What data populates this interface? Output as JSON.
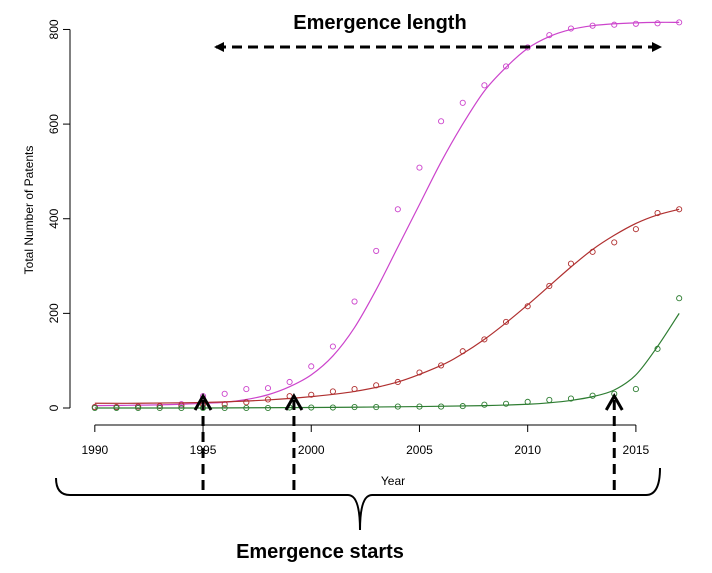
{
  "chart_data": {
    "type": "scatter",
    "title": "",
    "xlabel": "Year",
    "ylabel": "Total Number of Patents",
    "xlim": [
      1989.5,
      2017.5
    ],
    "ylim": [
      0,
      820
    ],
    "x_ticks": [
      1990,
      1995,
      2000,
      2005,
      2010,
      2015
    ],
    "y_ticks": [
      0,
      200,
      400,
      600,
      800
    ],
    "grid": false,
    "legend": "none",
    "series": [
      {
        "color": "#cc44cc",
        "points_x": [
          1990,
          1991,
          1992,
          1993,
          1994,
          1995,
          1996,
          1997,
          1998,
          1999,
          2000,
          2001,
          2002,
          2003,
          2004,
          2005,
          2006,
          2007,
          2008,
          2009,
          2010,
          2011,
          2012,
          2013,
          2014,
          2015,
          2016,
          2017
        ],
        "points_y": [
          2,
          2,
          3,
          4,
          8,
          25,
          30,
          40,
          42,
          55,
          88,
          130,
          225,
          332,
          420,
          508,
          606,
          645,
          682,
          722,
          762,
          788,
          802,
          808,
          810,
          812,
          813,
          815
        ],
        "fit_x": [
          1990,
          1992,
          1994,
          1996,
          1997,
          1998,
          1999,
          2000,
          2001,
          2002,
          2003,
          2004,
          2005,
          2006,
          2007,
          2008,
          2009,
          2010,
          2011,
          2012,
          2013,
          2014,
          2015,
          2016,
          2017
        ],
        "fit_y": [
          5,
          6,
          8,
          12,
          18,
          28,
          45,
          70,
          110,
          170,
          250,
          340,
          430,
          520,
          600,
          670,
          720,
          760,
          785,
          800,
          808,
          812,
          814,
          815,
          815
        ]
      },
      {
        "color": "#b03030",
        "points_x": [
          1990,
          1991,
          1992,
          1993,
          1994,
          1995,
          1996,
          1997,
          1998,
          1999,
          2000,
          2001,
          2002,
          2003,
          2004,
          2005,
          2006,
          2007,
          2008,
          2009,
          2010,
          2011,
          2012,
          2013,
          2014,
          2015,
          2016,
          2017
        ],
        "points_y": [
          2,
          2,
          3,
          4,
          5,
          8,
          8,
          12,
          18,
          25,
          28,
          35,
          40,
          48,
          55,
          75,
          90,
          120,
          145,
          182,
          215,
          258,
          305,
          330,
          350,
          378,
          412,
          420
        ],
        "fit_x": [
          1990,
          1992,
          1994,
          1996,
          1998,
          2000,
          2002,
          2004,
          2006,
          2007,
          2008,
          2009,
          2010,
          2011,
          2012,
          2013,
          2014,
          2015,
          2016,
          2017
        ],
        "fit_y": [
          10,
          10,
          11,
          13,
          17,
          24,
          35,
          55,
          90,
          115,
          145,
          180,
          218,
          258,
          298,
          335,
          365,
          390,
          408,
          420
        ]
      },
      {
        "color": "#2e7d32",
        "points_x": [
          1990,
          1991,
          1992,
          1993,
          1994,
          1995,
          1996,
          1997,
          1998,
          1999,
          2000,
          2001,
          2002,
          2003,
          2004,
          2005,
          2006,
          2007,
          2008,
          2009,
          2010,
          2011,
          2012,
          2013,
          2014,
          2015,
          2016,
          2017
        ],
        "points_y": [
          0,
          0,
          0,
          0,
          0,
          0,
          0,
          0,
          0,
          1,
          1,
          1,
          2,
          2,
          3,
          3,
          3,
          4,
          7,
          9,
          13,
          17,
          20,
          26,
          30,
          40,
          125,
          232
        ],
        "fit_x": [
          1990,
          1995,
          2000,
          2005,
          2008,
          2010,
          2011,
          2012,
          2013,
          2014,
          2015,
          2016,
          2017
        ],
        "fit_y": [
          0,
          0,
          1,
          3,
          5,
          8,
          11,
          16,
          24,
          38,
          70,
          130,
          200
        ]
      }
    ],
    "annotations": {
      "length_label": "Emergence length",
      "starts_label": "Emergence starts",
      "start_years": [
        1995,
        1999.2,
        2014
      ]
    }
  }
}
